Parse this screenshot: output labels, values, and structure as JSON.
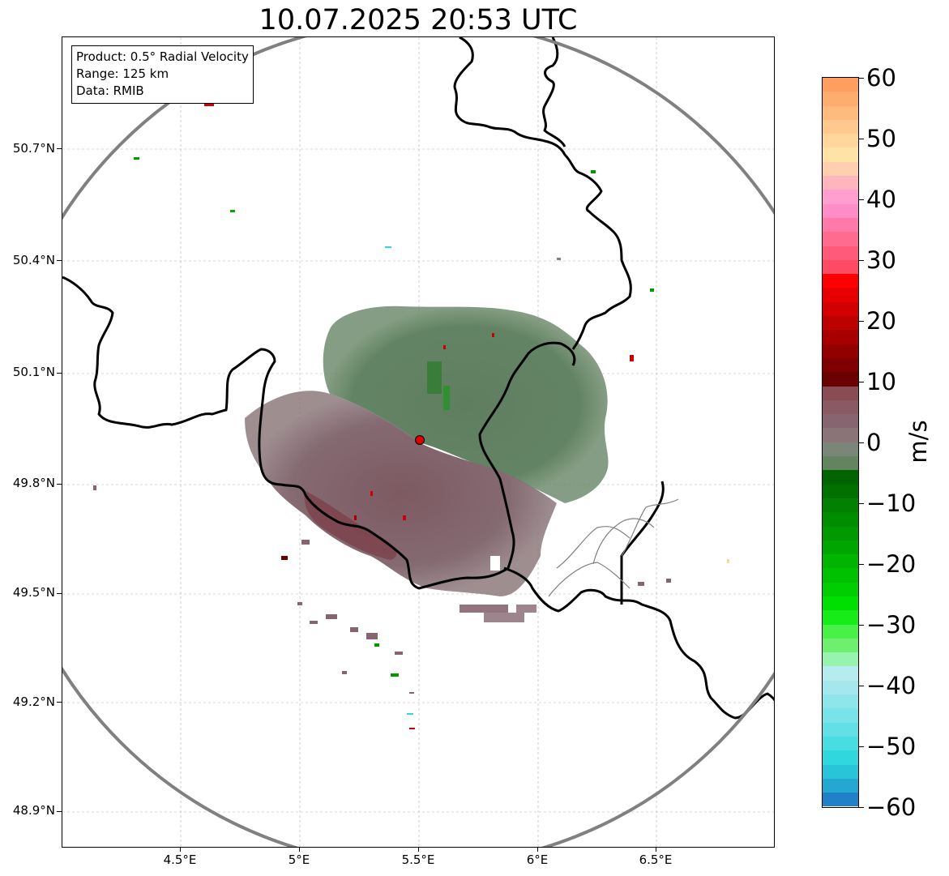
{
  "title": "10.07.2025 20:53 UTC",
  "info": {
    "product": "Product: 0.5° Radial Velocity",
    "range": "Range: 125 km",
    "data": "Data: RMIB"
  },
  "axes": {
    "lat_labels": [
      "50.7°N",
      "50.4°N",
      "50.1°N",
      "49.8°N",
      "49.5°N",
      "49.2°N",
      "48.9°N"
    ],
    "lon_labels": [
      "4.5°E",
      "5°E",
      "5.5°E",
      "6°E",
      "6.5°E"
    ]
  },
  "radar_site": {
    "name": "radar-site",
    "lon": 5.5,
    "lat": 49.91
  },
  "colorbar": {
    "unit": "m/s",
    "min": -60,
    "max": 60,
    "tick_labels": [
      "60",
      "50",
      "40",
      "30",
      "20",
      "10",
      "0",
      "−10",
      "−20",
      "−30",
      "−40",
      "−50",
      "−60"
    ],
    "colors_top_to_bottom": [
      "#ff9e5e",
      "#ffad6e",
      "#ffbb7d",
      "#ffc88c",
      "#ffd69b",
      "#ffe2a6",
      "#ffcfb0",
      "#ffb5bc",
      "#ff9fd0",
      "#ff8ec8",
      "#ff7aa9",
      "#ff6b8f",
      "#ff5a7a",
      "#ff4a63",
      "#ff0000",
      "#e80000",
      "#d20000",
      "#bd0000",
      "#a80000",
      "#930000",
      "#7e0000",
      "#6a0000",
      "#884c52",
      "#8a5a62",
      "#866570",
      "#8a7478",
      "#7a8677",
      "#628560",
      "#006400",
      "#007100",
      "#007f00",
      "#008c00",
      "#009900",
      "#00a600",
      "#00b400",
      "#00c100",
      "#00ce00",
      "#00e000",
      "#18ec18",
      "#48f048",
      "#6ef06e",
      "#98f3b0",
      "#b4ecf0",
      "#a4e8ee",
      "#8ee6ea",
      "#78e3e8",
      "#62e0e6",
      "#48dde2",
      "#30d8de",
      "#28c4d8",
      "#24a8d2",
      "#2080c8"
    ]
  }
}
